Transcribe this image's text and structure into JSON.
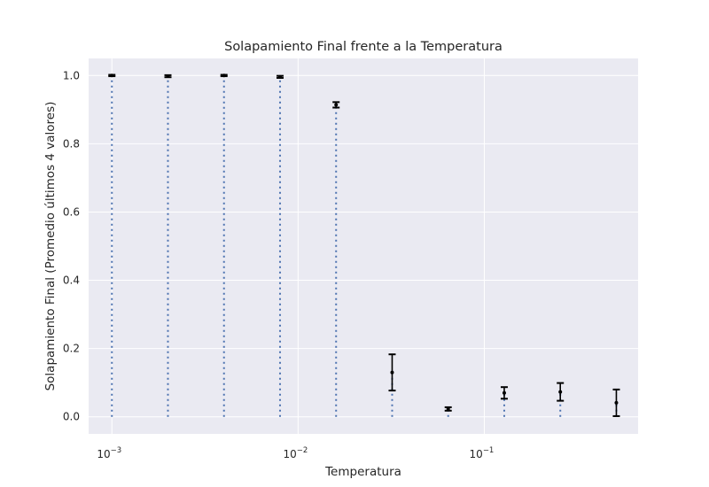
{
  "chart_data": {
    "type": "scatter",
    "title": "Solapamiento Final frente a la Temperatura",
    "xlabel": "Temperatura",
    "ylabel": "Solapamiento Final (Promedio últimos 4 valores)",
    "xscale": "log",
    "xlim": [
      0.00075,
      0.67
    ],
    "ylim": [
      -0.05,
      1.05
    ],
    "x_ticks": [
      {
        "value": 0.001,
        "label": "10",
        "exp": "−3"
      },
      {
        "value": 0.01,
        "label": "10",
        "exp": "−2"
      },
      {
        "value": 0.1,
        "label": "10",
        "exp": "−1"
      }
    ],
    "y_ticks": [
      {
        "value": 0.0,
        "label": "0.0"
      },
      {
        "value": 0.2,
        "label": "0.2"
      },
      {
        "value": 0.4,
        "label": "0.4"
      },
      {
        "value": 0.6,
        "label": "0.6"
      },
      {
        "value": 0.8,
        "label": "0.8"
      },
      {
        "value": 1.0,
        "label": "1.0"
      }
    ],
    "grid": true,
    "points": [
      {
        "x": 0.001,
        "y": 1.0,
        "yerr": 0.002
      },
      {
        "x": 0.002,
        "y": 0.998,
        "yerr": 0.003
      },
      {
        "x": 0.004,
        "y": 1.0,
        "yerr": 0.002
      },
      {
        "x": 0.008,
        "y": 0.996,
        "yerr": 0.003
      },
      {
        "x": 0.016,
        "y": 0.914,
        "yerr": 0.008
      },
      {
        "x": 0.032,
        "y": 0.13,
        "yerr": 0.053
      },
      {
        "x": 0.064,
        "y": 0.023,
        "yerr": 0.005
      },
      {
        "x": 0.128,
        "y": 0.07,
        "yerr": 0.017
      },
      {
        "x": 0.256,
        "y": 0.073,
        "yerr": 0.026
      },
      {
        "x": 0.512,
        "y": 0.041,
        "yerr": 0.039
      }
    ],
    "colors": {
      "plot_background": "#eaeaf2",
      "grid": "#ffffff",
      "stem": "#4c72b0",
      "marker": "#000000",
      "errorbar": "#000000"
    }
  }
}
